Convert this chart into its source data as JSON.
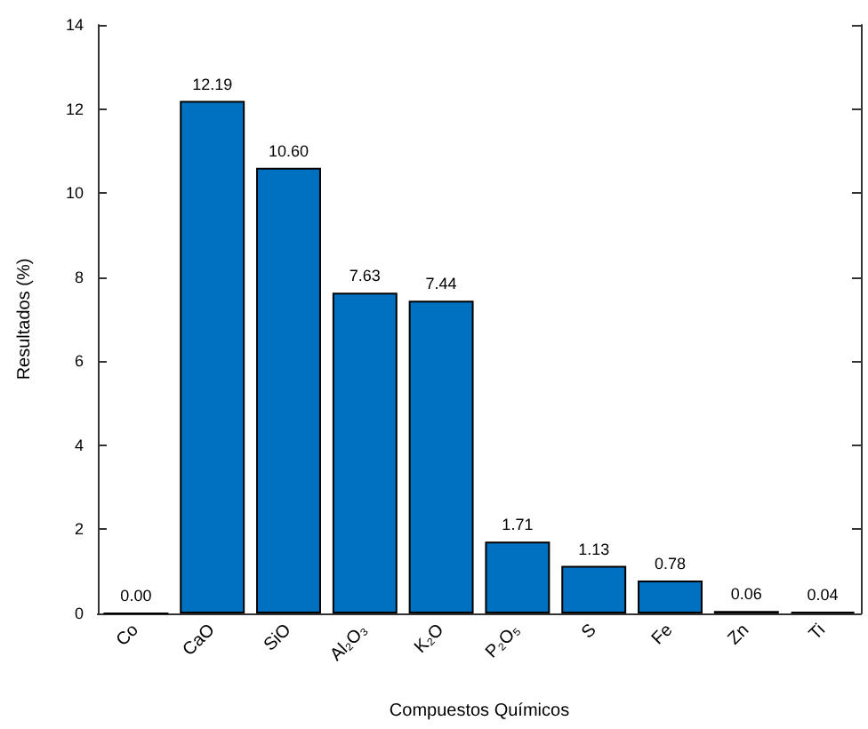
{
  "chart_data": {
    "type": "bar",
    "xlabel": "Compuestos Químicos",
    "ylabel": "Resultados (%)",
    "categories": [
      "Co",
      "CaO",
      "SiO",
      "Al₂O₃",
      "K₂O",
      "P₂O₅",
      "S",
      "Fe",
      "Zn",
      "Ti"
    ],
    "values": [
      0.0,
      12.19,
      10.6,
      7.63,
      7.44,
      1.71,
      1.13,
      0.78,
      0.06,
      0.04
    ],
    "value_labels": [
      "0.00",
      "12.19",
      "10.60",
      "7.63",
      "7.44",
      "1.71",
      "1.13",
      "0.78",
      "0.06",
      "0.04"
    ],
    "colors": [
      "#000000",
      "#0070c0",
      "#0070c0",
      "#0070c0",
      "#0070c0",
      "#0070c0",
      "#0070c0",
      "#0070c0",
      "#000000",
      "#000000"
    ],
    "ylim": [
      0,
      14
    ],
    "yticks": [
      0,
      2,
      4,
      6,
      8,
      10,
      12,
      14
    ],
    "grid": false
  }
}
